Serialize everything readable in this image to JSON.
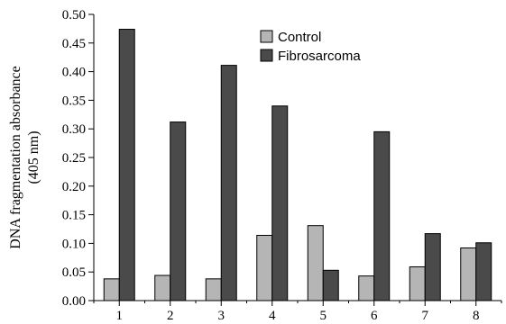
{
  "chart_data": {
    "type": "bar",
    "title": "",
    "xlabel": "",
    "ylabel_lines": [
      "DNA fragmentation absorbance",
      "(405 nm)"
    ],
    "ylim": [
      0,
      0.5
    ],
    "yticks": [
      "0.00",
      "0.05",
      "0.10",
      "0.15",
      "0.20",
      "0.25",
      "0.30",
      "0.35",
      "0.40",
      "0.45",
      "0.50"
    ],
    "categories": [
      "1",
      "2",
      "3",
      "4",
      "5",
      "6",
      "7",
      "8"
    ],
    "series": [
      {
        "name": "Control",
        "color": "#b5b5b5",
        "values": [
          0.038,
          0.044,
          0.038,
          0.114,
          0.131,
          0.043,
          0.059,
          0.092
        ]
      },
      {
        "name": "Fibrosarcoma",
        "color": "#4a4a4a",
        "values": [
          0.474,
          0.312,
          0.411,
          0.34,
          0.053,
          0.295,
          0.117,
          0.101
        ]
      }
    ],
    "grid": false,
    "legend_position": "top-right"
  }
}
